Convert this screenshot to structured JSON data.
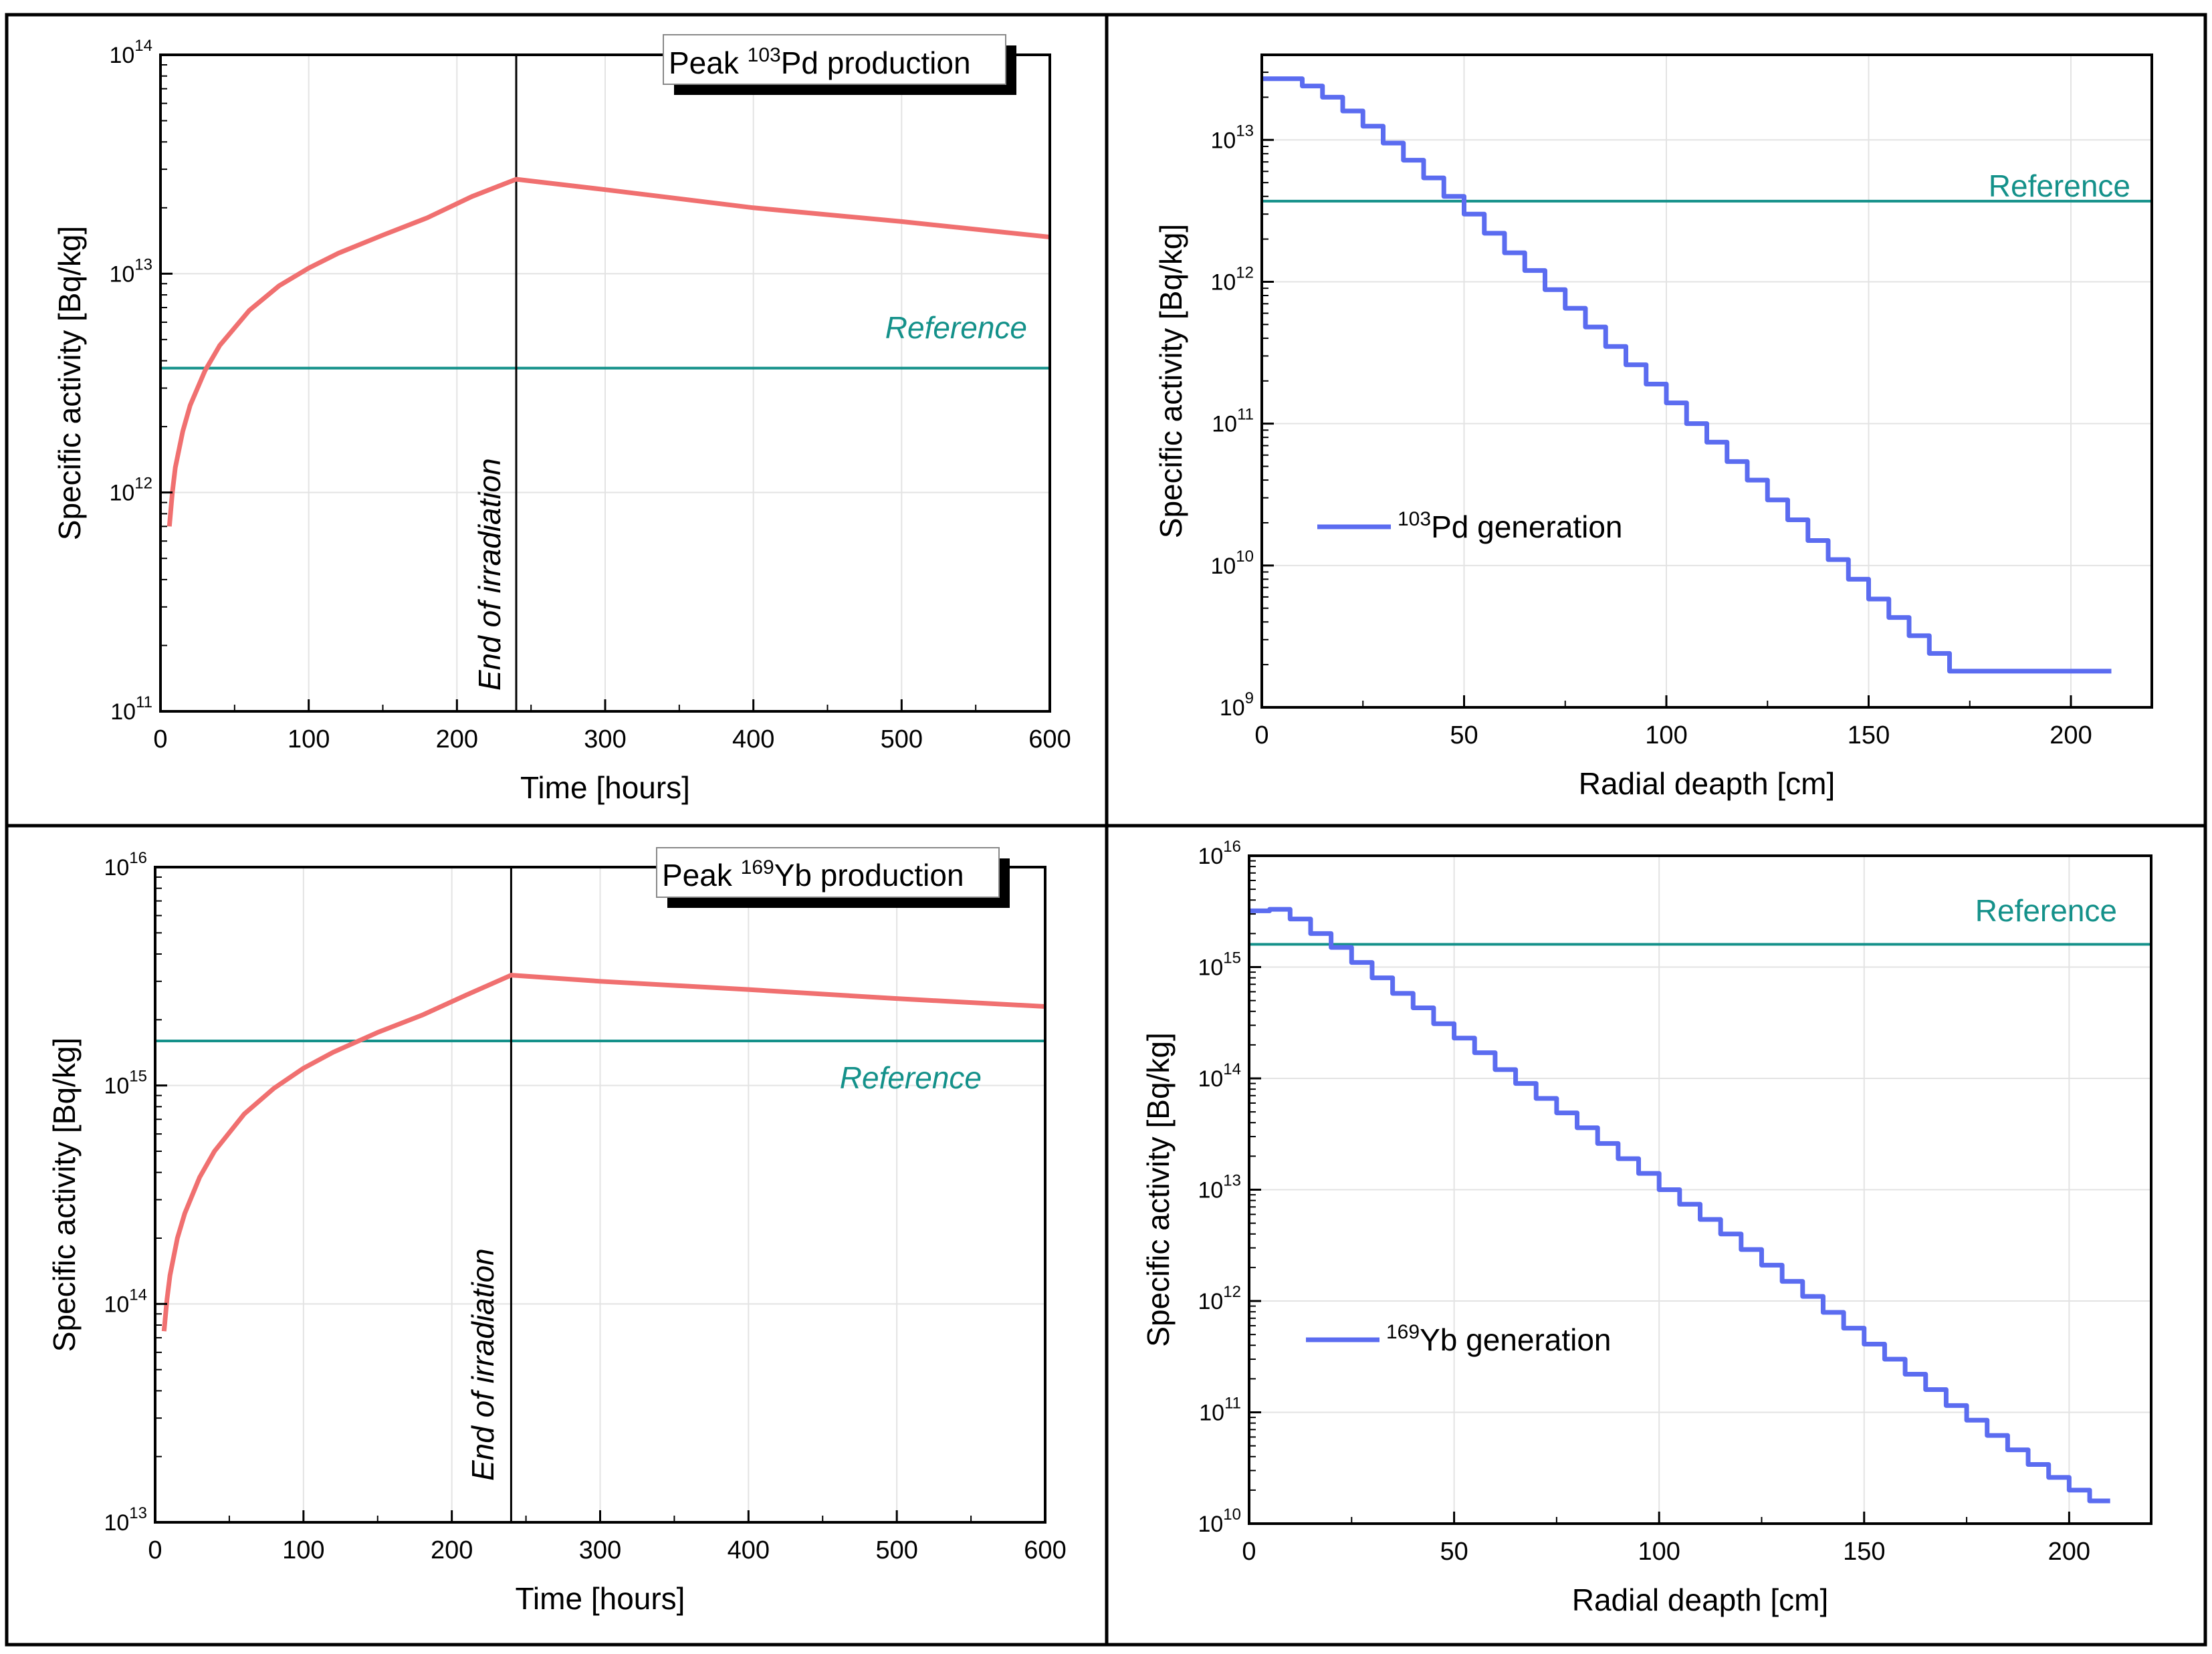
{
  "colors": {
    "activity_line": "#f07070",
    "generation_line": "#5b6cf0",
    "reference_line": "#14918a",
    "grid": "#e3e3e3",
    "axis": "#000000"
  },
  "chart_data": [
    {
      "id": "pd-time",
      "type": "line",
      "title": "Peak 103Pd production",
      "title_parts": {
        "prefix": "Peak ",
        "sup": "103",
        "suffix": "Pd production"
      },
      "xlabel": "Time [hours]",
      "ylabel": "Specific activity [Bq/kg]",
      "yscale": "log",
      "xlim": [
        0,
        600
      ],
      "ylim_exp": [
        11,
        14
      ],
      "xticks": [
        0,
        100,
        200,
        300,
        400,
        500,
        600
      ],
      "yticks_exp": [
        11,
        12,
        13,
        14
      ],
      "series": [
        {
          "name": "Specific activity",
          "x": [
            6,
            8,
            10,
            15,
            20,
            30,
            40,
            60,
            80,
            100,
            120,
            150,
            180,
            210,
            240,
            300,
            400,
            500,
            600
          ],
          "y": [
            700000000000.0,
            1000000000000.0,
            1300000000000.0,
            1900000000000.0,
            2500000000000.0,
            3600000000000.0,
            4700000000000.0,
            6800000000000.0,
            8800000000000.0,
            10600000000000.0,
            12400000000000.0,
            15000000000000.0,
            18000000000000.0,
            22500000000000.0,
            27000000000000.0,
            24200000000000.0,
            20000000000000.0,
            17300000000000.0,
            14700000000000.0
          ]
        }
      ],
      "reference": {
        "label": "Reference",
        "value": 3700000000000.0
      },
      "annotation": {
        "label": "End of irradiation",
        "x": 240
      }
    },
    {
      "id": "pd-depth",
      "type": "line",
      "step": true,
      "xlabel": "Radial deapth [cm]",
      "ylabel": "Specific activity [Bq/kg]",
      "yscale": "log",
      "xlim": [
        0,
        220
      ],
      "ylim_exp": [
        9,
        13.6
      ],
      "xticks": [
        0,
        50,
        100,
        150,
        200
      ],
      "yticks_exp": [
        9,
        10,
        11,
        12,
        13
      ],
      "legend": {
        "sup": "103",
        "text": "Pd generation",
        "placement": "center-left"
      },
      "series": [
        {
          "name": "103Pd generation",
          "x": [
            0,
            5,
            10,
            15,
            20,
            25,
            30,
            35,
            40,
            45,
            50,
            55,
            60,
            65,
            70,
            75,
            80,
            85,
            90,
            95,
            100,
            105,
            110,
            115,
            120,
            125,
            130,
            135,
            140,
            145,
            150,
            155,
            160,
            165,
            170,
            175,
            180,
            185,
            190,
            195,
            200,
            205
          ],
          "y": [
            27000000000000.0,
            27000000000000.0,
            24000000000000.0,
            20000000000000.0,
            16000000000000.0,
            12500000000000.0,
            9500000000000.0,
            7200000000000.0,
            5400000000000.0,
            4000000000000.0,
            3000000000000.0,
            2200000000000.0,
            1600000000000.0,
            1200000000000.0,
            880000000000.0,
            650000000000.0,
            480000000000.0,
            350000000000.0,
            260000000000.0,
            190000000000.0,
            140000000000.0,
            100000000000.0,
            74000000000.0,
            54000000000.0,
            40000000000.0,
            29000000000.0,
            21000000000.0,
            15000000000.0,
            11000000000.0,
            8000000000.0,
            5800000000.0,
            4300000000.0,
            3200000000.0,
            2400000000.0,
            1800000000.0,
            1800000000.0,
            1800000000.0,
            1800000000.0,
            1800000000.0,
            1800000000.0,
            1800000000.0,
            1800000000.0
          ]
        }
      ],
      "reference": {
        "label": "Reference",
        "value": 3700000000000.0
      }
    },
    {
      "id": "yb-time",
      "type": "line",
      "title": "Peak 169Yb production",
      "title_parts": {
        "prefix": "Peak ",
        "sup": "169",
        "suffix": "Yb production"
      },
      "xlabel": "Time [hours]",
      "ylabel": "Specific activity [Bq/kg]",
      "yscale": "log",
      "xlim": [
        0,
        600
      ],
      "ylim_exp": [
        13,
        16
      ],
      "xticks": [
        0,
        100,
        200,
        300,
        400,
        500,
        600
      ],
      "yticks_exp": [
        13,
        14,
        15,
        16
      ],
      "series": [
        {
          "name": "Specific activity",
          "x": [
            6,
            8,
            10,
            15,
            20,
            30,
            40,
            60,
            80,
            100,
            120,
            150,
            180,
            210,
            240,
            300,
            400,
            500,
            600
          ],
          "y": [
            75000000000000.0,
            105000000000000.0,
            135000000000000.0,
            200000000000000.0,
            260000000000000.0,
            380000000000000.0,
            500000000000000.0,
            740000000000000.0,
            970000000000000.0,
            1200000000000000.0,
            1420000000000000.0,
            1750000000000000.0,
            2100000000000000.0,
            2600000000000000.0,
            3200000000000000.0,
            3000000000000000.0,
            2750000000000000.0,
            2500000000000000.0,
            2300000000000000.0
          ]
        }
      ],
      "reference": {
        "label": "Reference",
        "value": 1600000000000000.0
      },
      "annotation": {
        "label": "End of irradiation",
        "x": 240
      }
    },
    {
      "id": "yb-depth",
      "type": "line",
      "step": true,
      "xlabel": "Radial deapth [cm]",
      "ylabel": "Specific activity [Bq/kg]",
      "yscale": "log",
      "xlim": [
        0,
        220
      ],
      "ylim_exp": [
        10,
        16
      ],
      "xticks": [
        0,
        50,
        100,
        150,
        200
      ],
      "yticks_exp": [
        10,
        11,
        12,
        13,
        14,
        15,
        16
      ],
      "legend": {
        "sup": "169",
        "text": "Yb generation",
        "placement": "center-left"
      },
      "series": [
        {
          "name": "169Yb generation",
          "x": [
            0,
            5,
            10,
            15,
            20,
            25,
            30,
            35,
            40,
            45,
            50,
            55,
            60,
            65,
            70,
            75,
            80,
            85,
            90,
            95,
            100,
            105,
            110,
            115,
            120,
            125,
            130,
            135,
            140,
            145,
            150,
            155,
            160,
            165,
            170,
            175,
            180,
            185,
            190,
            195,
            200,
            205
          ],
          "y": [
            3200000000000000.0,
            3300000000000000.0,
            2700000000000000.0,
            2000000000000000.0,
            1500000000000000.0,
            1100000000000000.0,
            800000000000000.0,
            580000000000000.0,
            430000000000000.0,
            310000000000000.0,
            230000000000000.0,
            170000000000000.0,
            120000000000000.0,
            90000000000000.0,
            66000000000000.0,
            49000000000000.0,
            36000000000000.0,
            26000000000000.0,
            19000000000000.0,
            14000000000000.0,
            10000000000000.0,
            7400000000000.0,
            5400000000000.0,
            4000000000000.0,
            2900000000000.0,
            2100000000000.0,
            1500000000000.0,
            1100000000000.0,
            790000000000.0,
            570000000000.0,
            410000000000.0,
            300000000000.0,
            220000000000.0,
            160000000000.0,
            115000000000.0,
            85000000000.0,
            62000000000.0,
            46000000000.0,
            34000000000.0,
            26000000000.0,
            20000000000.0,
            16000000000.0
          ]
        }
      ],
      "reference": {
        "label": "Reference",
        "value": 1600000000000000.0
      }
    }
  ]
}
